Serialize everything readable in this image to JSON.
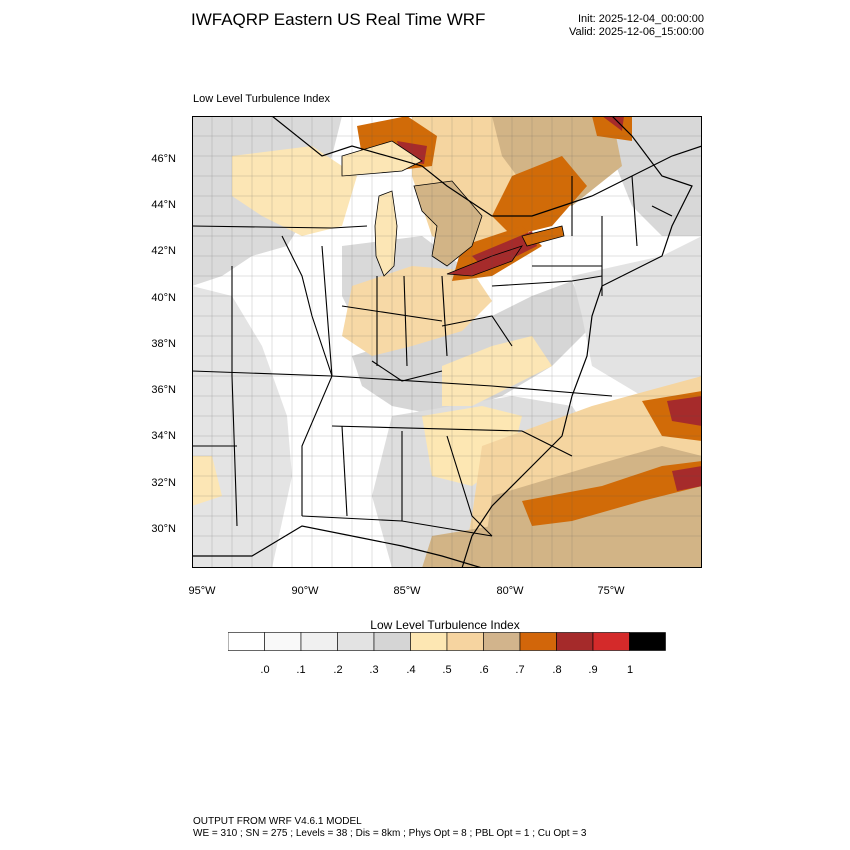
{
  "header": {
    "title": "IWFAQRP Eastern US Real Time WRF",
    "init": "Init: 2025-12-04_00:00:00",
    "valid": "Valid: 2025-12-06_15:00:00"
  },
  "panel": {
    "label": "Low Level Turbulence Index"
  },
  "map": {
    "latitude_labels": [
      "46°N",
      "44°N",
      "42°N",
      "40°N",
      "38°N",
      "36°N",
      "34°N",
      "32°N",
      "30°N"
    ],
    "longitude_labels": [
      "95°W",
      "90°W",
      "85°W",
      "80°W",
      "75°W"
    ],
    "colors": {
      "ocean_haze": "#e3e3e3",
      "light_gray": "#dadada",
      "white": "#ffffff",
      "tan_light": "#fce6b5",
      "tan": "#f5d5a0",
      "tan_dark": "#d2b486",
      "orange": "#d16b08",
      "dark_red": "#a62b2b",
      "lake": "#fce6b5"
    }
  },
  "colorbar": {
    "title": "Low Level Turbulence Index",
    "labels": [
      ".0",
      ".1",
      ".2",
      ".3",
      ".4",
      ".5",
      ".6",
      ".7",
      ".8",
      ".9",
      "1"
    ],
    "colors": [
      "#ffffff",
      "#f9f9f9",
      "#f0f0f0",
      "#e3e3e3",
      "#d5d5d5",
      "#fde7b3",
      "#f6d4a0",
      "#d2b48c",
      "#d2660a",
      "#a52a2a",
      "#d42a2a",
      "#000000"
    ]
  },
  "footer": {
    "line1": "OUTPUT FROM WRF V4.6.1 MODEL",
    "line2": "WE = 310 ; SN = 275 ; Levels = 38 ; Dis = 8km ; Phys Opt = 8 ; PBL Opt = 1 ; Cu Opt = 3"
  }
}
